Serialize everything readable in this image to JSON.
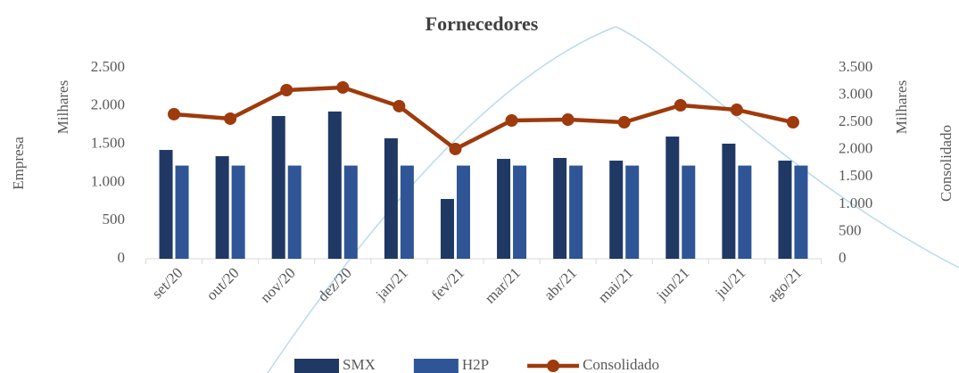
{
  "chart_data": {
    "type": "bar",
    "title": "Fornecedores",
    "categories": [
      "set/20",
      "out/20",
      "nov/20",
      "dez/20",
      "jan/21",
      "fev/21",
      "mar/21",
      "abr/21",
      "mai/21",
      "jun/21",
      "jul/21",
      "ago/21"
    ],
    "series": [
      {
        "name": "SMX",
        "color": "#203864",
        "type": "bar",
        "values": [
          1425,
          1343,
          1869,
          1928,
          1577,
          783,
          1308,
          1320,
          1285,
          1600,
          1507,
          1285
        ]
      },
      {
        "name": "H2P",
        "color": "#2f5597",
        "type": "bar",
        "values": [
          1220,
          1220,
          1220,
          1220,
          1220,
          1220,
          1220,
          1220,
          1220,
          1220,
          1220,
          1220
        ]
      },
      {
        "name": "Consolidado",
        "color": "#9e3a0c",
        "type": "line",
        "axis": "y2",
        "values": [
          2650,
          2568,
          3091,
          3140,
          2797,
          2012,
          2535,
          2551,
          2502,
          2813,
          2731,
          2502
        ]
      }
    ],
    "ylabel": "Empresa",
    "ylabel_unit": "Milhares",
    "y2label": "Consolidado",
    "y2label_unit": "Milhares",
    "ylim": [
      0,
      2500
    ],
    "yticks": [
      0,
      500,
      {
        "value": 1000,
        "label": "1.000"
      },
      {
        "value": 1500,
        "label": "1.500"
      },
      {
        "value": 2000,
        "label": "2.000"
      },
      {
        "value": 2500,
        "label": "2.500"
      }
    ],
    "y2lim": [
      0,
      3500
    ],
    "y2ticks": [
      0,
      500,
      {
        "value": 1000,
        "label": "1.000"
      },
      {
        "value": 1500,
        "label": "1.500"
      },
      {
        "value": 2000,
        "label": "2.000"
      },
      {
        "value": 2500,
        "label": "2.500"
      },
      {
        "value": 3000,
        "label": "3.000"
      },
      {
        "value": 3500,
        "label": "3.500"
      }
    ],
    "legend": "bottom"
  }
}
